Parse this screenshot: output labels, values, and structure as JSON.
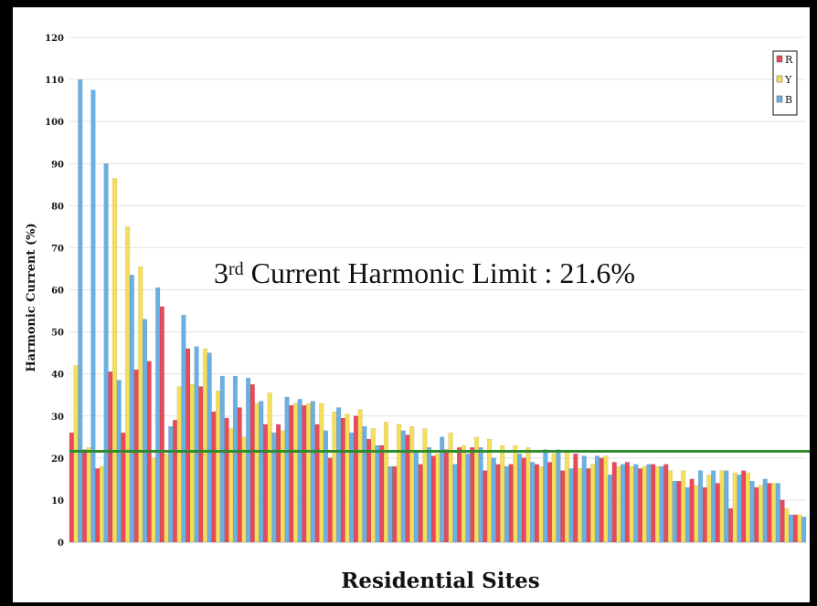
{
  "chart_data": {
    "type": "bar",
    "xlabel": "Residential Sites",
    "ylabel": "Harmonic Current (%)",
    "ylim": [
      0,
      120
    ],
    "yticks": [
      0,
      10,
      20,
      30,
      40,
      50,
      60,
      70,
      80,
      90,
      100,
      110,
      120
    ],
    "grid": true,
    "legend_position": "top-right",
    "annotation": {
      "main": "3",
      "sup": "rd",
      "rest": " Current Harmonic Limit : 21.6%"
    },
    "limit_line": {
      "value": 21.6,
      "color": "#2e8b2e"
    },
    "series": [
      {
        "name": "R",
        "color": "#e84a5a",
        "values": [
          26,
          22,
          17.5,
          40.5,
          26,
          41,
          43,
          56,
          29,
          46,
          37,
          31,
          29.5,
          32,
          37.5,
          28,
          28,
          32.5,
          32.5,
          28,
          20,
          29.5,
          30,
          24.5,
          23,
          18,
          25.5,
          18.5,
          20.5,
          22,
          22.5,
          22.5,
          17,
          18.5,
          18.5,
          20,
          18.5,
          19,
          17,
          21,
          17.5,
          20,
          19,
          19,
          17.5,
          18.5,
          18.5,
          14.5,
          15,
          13,
          14,
          8,
          17,
          13,
          14,
          10,
          6.5
        ]
      },
      {
        "name": "Y",
        "color": "#f5df5a",
        "values": [
          42,
          22.5,
          18,
          86.5,
          75,
          65.5,
          20,
          21,
          37,
          37.5,
          46,
          36,
          27,
          25,
          33,
          35.5,
          26.5,
          33,
          33,
          33,
          31,
          30.5,
          31.5,
          27,
          28.5,
          28,
          27.5,
          27,
          21,
          26,
          23,
          25,
          24.5,
          23,
          23,
          22.5,
          18,
          21,
          21.5,
          17.5,
          18.5,
          20.5,
          18,
          18,
          18,
          18,
          17,
          17,
          13.5,
          16,
          17,
          16.5,
          16.5,
          13.5,
          14,
          8,
          6.5
        ]
      },
      {
        "name": "B",
        "color": "#6ab0e4",
        "values": [
          110,
          107.5,
          90,
          38.5,
          63.5,
          53,
          60.5,
          27.5,
          54,
          46.5,
          45,
          39.5,
          39.5,
          39,
          33.5,
          26,
          34.5,
          34,
          33.5,
          26.5,
          32,
          26,
          27.5,
          23,
          18,
          26.5,
          21.5,
          22.5,
          25,
          18.5,
          21,
          22.5,
          20,
          18,
          21,
          19,
          22,
          22,
          17.5,
          20.5,
          20.5,
          16,
          18.5,
          18.5,
          18.5,
          18,
          14.5,
          13,
          17,
          17,
          17,
          16,
          14.5,
          15,
          14,
          6.5,
          6
        ]
      }
    ]
  }
}
